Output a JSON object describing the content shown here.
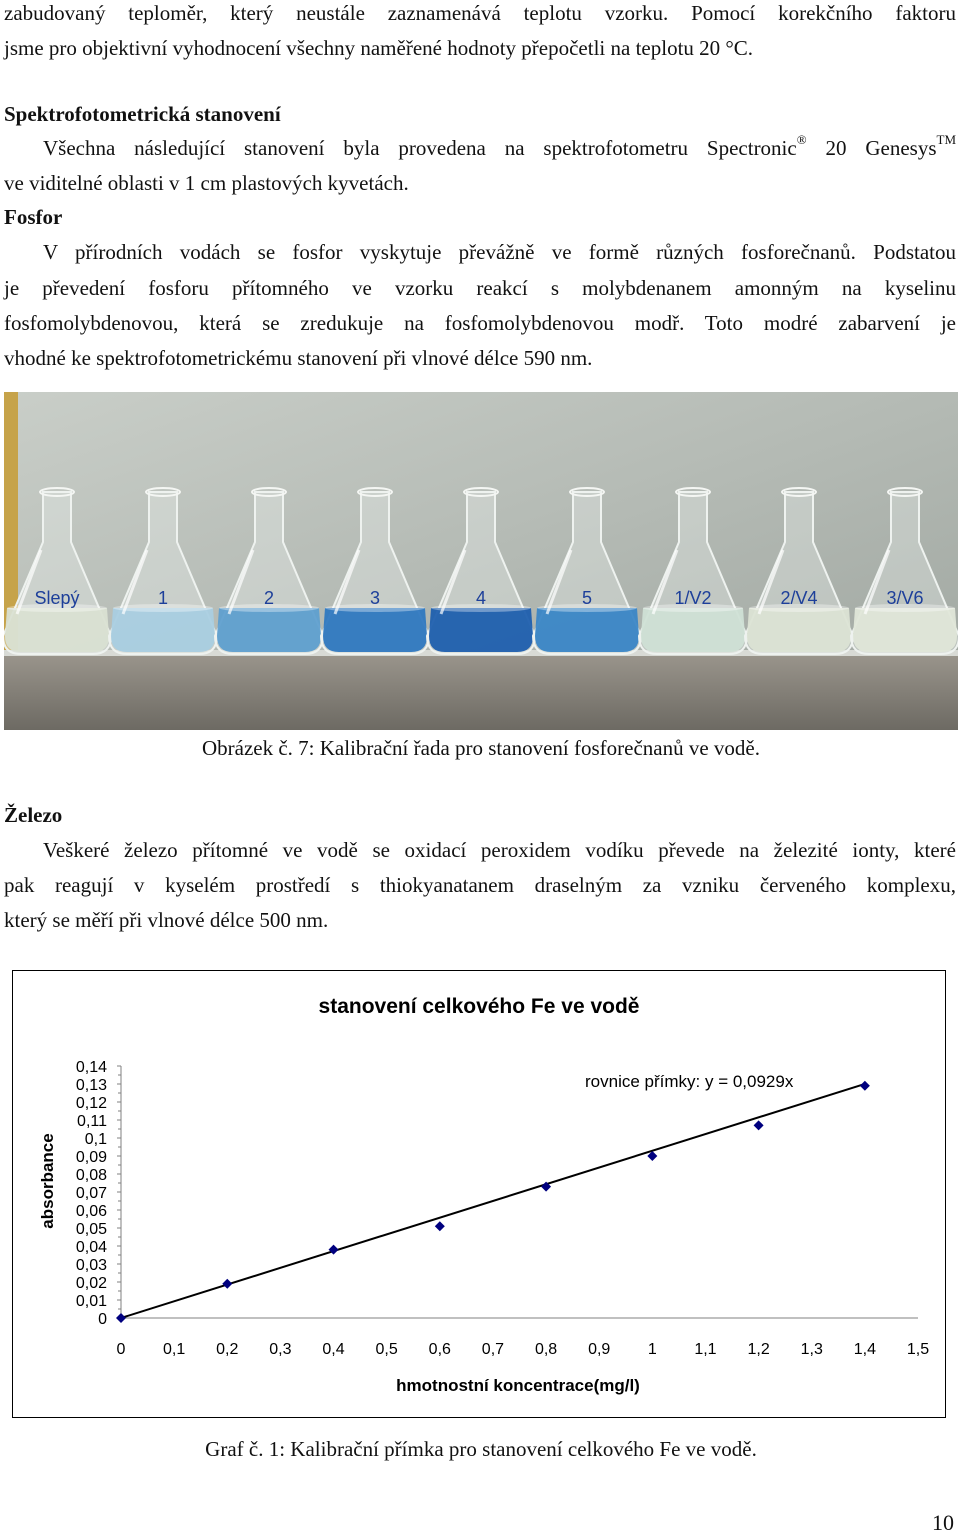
{
  "intro": {
    "line1": "zabudovaný teploměr, který neustále zaznamenává teplotu vzorku. Pomocí korekčního faktoru",
    "line2": "jsme pro objektivní vyhodnocení všechny naměřené hodnoty přepočetli na teplotu 20 °C."
  },
  "spectro": {
    "heading": "Spektrofotometrická stanovení",
    "line1_a": "Všechna následující stanovení byla provedena na spektrofotometru Spectronic",
    "reg_mark": "®",
    "line1_b": " 20 Genesys",
    "tm_mark": "TM",
    "line2": "ve viditelné oblasti v 1 cm plastových kyvetách."
  },
  "fosfor": {
    "heading": "Fosfor",
    "line1": "V přírodních vodách se fosfor vyskytuje převážně ve formě různých fosforečnanů. Podstatou",
    "line2": "je převedení fosforu přítomného ve vzorku reakcí s molybdenanem amonným na kyselinu",
    "line3": "fosfomolybdenovou, která se zredukuje na fosfomolybdenovou modř. Toto modré zabarvení je",
    "line4": "vhodné ke spektrofotometrickému stanovení při vlnové délce 590 nm."
  },
  "photo": {
    "flask_labels": [
      "Slepý",
      "1",
      "2",
      "3",
      "4",
      "5",
      "1/V2",
      "2/V4",
      "3/V6"
    ],
    "flask_colors": [
      "#d9e0d2",
      "#a9cde0",
      "#5f9fcf",
      "#2f78c0",
      "#1f5fae",
      "#3a86c6",
      "#cfe0d5",
      "#dbe3d4",
      "#dfe6d8"
    ],
    "caption": "Obrázek č. 7: Kalibrační řada pro stanovení fosforečnanů ve vodě."
  },
  "zelezo": {
    "heading": "Železo",
    "line1": "Veškeré železo přítomné ve vodě se oxidací peroxidem vodíku převede na železité ionty, které",
    "line2": "pak reagují v kyselém prostředí s thiokyanatanem draselným za vzniku červeného komplexu,",
    "line3": "který se měří při vlnové délce 500 nm."
  },
  "chart_data": {
    "type": "scatter",
    "title": "stanovení celkového Fe ve vodě",
    "xlabel": "hmotnostní koncentrace(mg/l)",
    "ylabel": "absorbance",
    "annotation": "rovnice přímky: y = 0,0929x",
    "xlim": [
      0,
      1.5
    ],
    "ylim": [
      0,
      0.14
    ],
    "x_ticks": [
      "0",
      "0,1",
      "0,2",
      "0,3",
      "0,4",
      "0,5",
      "0,6",
      "0,7",
      "0,8",
      "0,9",
      "1",
      "1,1",
      "1,2",
      "1,3",
      "1,4",
      "1,5"
    ],
    "y_ticks": [
      "0",
      "0,01",
      "0,02",
      "0,03",
      "0,04",
      "0,05",
      "0,06",
      "0,07",
      "0,08",
      "0,09",
      "0,1",
      "0,11",
      "0,12",
      "0,13",
      "0,14"
    ],
    "series": [
      {
        "values": [
          [
            0,
            0
          ],
          [
            0.2,
            0.019
          ],
          [
            0.4,
            0.038
          ],
          [
            0.6,
            0.051
          ],
          [
            0.8,
            0.073
          ],
          [
            1.0,
            0.09
          ],
          [
            1.2,
            0.107
          ],
          [
            1.4,
            0.129
          ]
        ]
      }
    ],
    "trendline": {
      "slope": 0.0929,
      "x_range": [
        0,
        1.4
      ]
    },
    "marker_color": "#00007f",
    "line_color": "#000000",
    "legend": "none",
    "grid": false
  },
  "chart_caption": "Graf č. 1: Kalibrační přímka pro stanovení celkového Fe ve vodě.",
  "page_number": "10"
}
